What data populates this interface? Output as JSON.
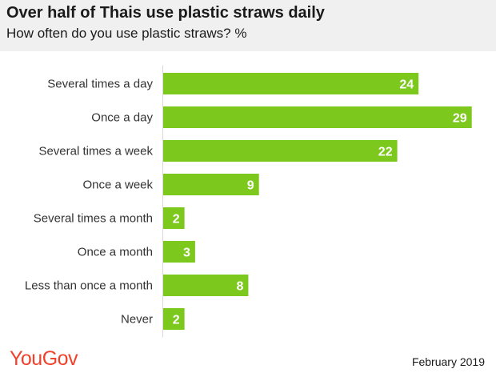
{
  "header": {
    "title": "Over half of Thais use plastic straws daily",
    "subtitle": "How often do you use plastic straws? %"
  },
  "footer": {
    "logo": "YouGov",
    "date": "February 2019"
  },
  "colors": {
    "bar": "#7dc81c",
    "axis": "#d9d9d9",
    "logo": "#f0412c"
  },
  "chart_data": {
    "type": "bar",
    "orientation": "horizontal",
    "title": "Over half of Thais use plastic straws daily",
    "subtitle": "How often do you use plastic straws? %",
    "categories": [
      "Several times a day",
      "Once a day",
      "Several times a week",
      "Once a week",
      "Several times a month",
      "Once a month",
      "Less than once a month",
      "Never"
    ],
    "values": [
      24,
      29,
      22,
      9,
      2,
      3,
      8,
      2
    ],
    "xlim": [
      0,
      30
    ],
    "grid": false,
    "data_labels": true
  }
}
